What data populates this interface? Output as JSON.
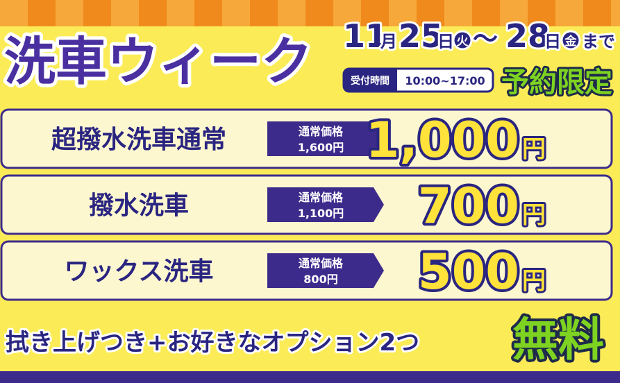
{
  "title": "洗車ウィーク",
  "date": [
    "11",
    "月",
    "25",
    "日",
    "火",
    "〜",
    "28",
    "日",
    "金",
    "まで"
  ],
  "reception": {
    "label": "受付時間",
    "hours": "10:00~17:00"
  },
  "badge": "予約限定",
  "rows": [
    {
      "name": "超撥水洗車通常",
      "regular_label": "通常価格",
      "regular_price": "1,600円",
      "price": "1,000",
      "unit": "円"
    },
    {
      "name": "撥水洗車",
      "regular_label": "通常価格",
      "regular_price": "1,100円",
      "price": "700",
      "unit": "円"
    },
    {
      "name": "ワックス洗車",
      "regular_label": "通常価格",
      "regular_price": "800円",
      "price": "500",
      "unit": "円"
    }
  ],
  "footer": {
    "text": "拭き上げつき+お好きなオプション2つ",
    "free": "無料"
  }
}
